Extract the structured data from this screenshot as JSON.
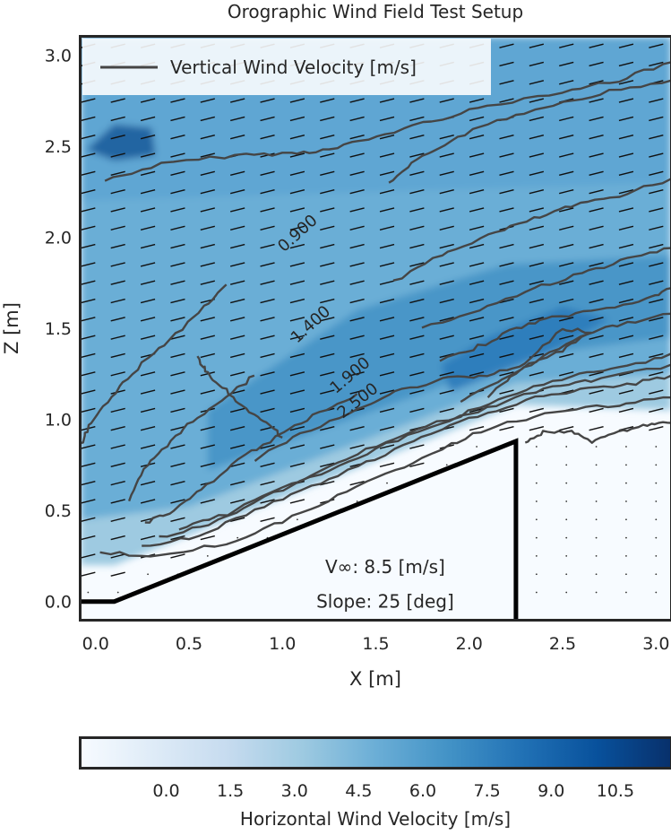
{
  "chart_data": {
    "type": "contour",
    "title": "Orographic Wind Field Test Setup",
    "xlabel": "X [m]",
    "ylabel": "Z [m]",
    "xlim": [
      -0.08,
      3.08
    ],
    "ylim": [
      -0.1,
      3.1
    ],
    "x_ticks": [
      0.0,
      0.5,
      1.0,
      1.5,
      2.0,
      2.5,
      3.0
    ],
    "y_ticks": [
      0.0,
      0.5,
      1.0,
      1.5,
      2.0,
      2.5,
      3.0
    ],
    "tick_format": "0.0",
    "legend": {
      "placement": "top-left",
      "entry": "Vertical Wind Velocity [m/s]",
      "color": "#454545"
    },
    "colorbar": {
      "label": "Horizontal Wind Velocity [m/s]",
      "ticks": [
        0.0,
        1.5,
        3.0,
        4.5,
        6.0,
        7.5,
        9.0,
        10.5
      ],
      "range": [
        -2.0,
        11.8
      ],
      "colors": [
        "#f7fbff",
        "#deebf7",
        "#c6dbef",
        "#9ecae1",
        "#6baed6",
        "#4292c6",
        "#2171b5",
        "#08519c",
        "#08306b"
      ]
    },
    "annotations": [
      {
        "text": "V∞: 8.5 [m/s]",
        "x": 1.55,
        "y": 0.19
      },
      {
        "text": "Slope: 25 [deg]",
        "x": 1.55,
        "y": 0.0
      }
    ],
    "terrain": [
      [
        -0.08,
        0.0
      ],
      [
        0.1,
        0.0
      ],
      [
        2.25,
        0.88
      ],
      [
        2.25,
        -0.1
      ]
    ],
    "contour_labels": [
      {
        "text": "0.900",
        "x": 1.1,
        "y": 2.0,
        "angle": -42
      },
      {
        "text": "1.400",
        "x": 1.17,
        "y": 1.5,
        "angle": -42
      },
      {
        "text": "1.900",
        "x": 1.38,
        "y": 1.22,
        "angle": -40
      },
      {
        "text": "2.500",
        "x": 1.42,
        "y": 1.08,
        "angle": -38
      }
    ],
    "contour_lines": [
      [
        [
          0.05,
          2.31
        ],
        [
          0.35,
          2.4
        ],
        [
          0.75,
          2.45
        ],
        [
          1.05,
          2.46
        ],
        [
          1.25,
          2.48
        ],
        [
          1.5,
          2.55
        ],
        [
          1.8,
          2.64
        ],
        [
          2.1,
          2.72
        ],
        [
          2.5,
          2.8
        ],
        [
          2.8,
          2.86
        ],
        [
          3.08,
          2.96
        ]
      ],
      [
        [
          1.57,
          2.29
        ],
        [
          1.72,
          2.42
        ],
        [
          1.9,
          2.53
        ],
        [
          2.15,
          2.64
        ],
        [
          2.45,
          2.73
        ],
        [
          2.75,
          2.8
        ],
        [
          3.08,
          2.86
        ]
      ],
      [
        [
          1.6,
          1.76
        ],
        [
          1.85,
          1.9
        ],
        [
          2.1,
          2.01
        ],
        [
          2.35,
          2.1
        ],
        [
          2.55,
          2.17
        ],
        [
          2.8,
          2.23
        ],
        [
          3.08,
          2.32
        ]
      ],
      [
        [
          1.75,
          1.5
        ],
        [
          2.05,
          1.6
        ],
        [
          2.35,
          1.72
        ],
        [
          2.6,
          1.8
        ],
        [
          2.85,
          1.88
        ],
        [
          3.08,
          1.94
        ]
      ],
      [
        [
          1.85,
          1.32
        ],
        [
          2.05,
          1.4
        ],
        [
          2.25,
          1.5
        ],
        [
          2.45,
          1.56
        ],
        [
          2.7,
          1.6
        ],
        [
          2.95,
          1.66
        ],
        [
          3.08,
          1.72
        ]
      ],
      [
        [
          1.95,
          1.1
        ],
        [
          2.15,
          1.2
        ],
        [
          2.35,
          1.32
        ],
        [
          2.6,
          1.46
        ],
        [
          2.8,
          1.52
        ],
        [
          3.08,
          1.58
        ]
      ],
      [
        [
          -0.08,
          0.86
        ],
        [
          -0.02,
          0.98
        ],
        [
          0.08,
          1.12
        ],
        [
          0.22,
          1.28
        ],
        [
          0.4,
          1.44
        ],
        [
          0.58,
          1.62
        ],
        [
          0.7,
          1.74
        ]
      ],
      [
        [
          0.18,
          0.55
        ],
        [
          0.26,
          0.72
        ],
        [
          0.38,
          0.86
        ],
        [
          0.52,
          0.99
        ],
        [
          0.7,
          1.13
        ],
        [
          0.85,
          1.24
        ]
      ],
      [
        [
          0.26,
          0.43
        ],
        [
          0.42,
          0.5
        ],
        [
          0.6,
          0.64
        ],
        [
          0.8,
          0.8
        ],
        [
          1.0,
          0.92
        ],
        [
          1.2,
          1.04
        ],
        [
          1.4,
          1.14
        ]
      ],
      [
        [
          0.85,
          0.78
        ],
        [
          1.1,
          0.92
        ],
        [
          1.4,
          1.05
        ],
        [
          1.6,
          1.15
        ],
        [
          1.85,
          1.22
        ],
        [
          2.1,
          1.24
        ],
        [
          2.3,
          1.3
        ],
        [
          2.5,
          1.5
        ],
        [
          2.65,
          1.48
        ],
        [
          2.5,
          1.38
        ],
        [
          2.25,
          1.26
        ],
        [
          2.1,
          1.12
        ]
      ],
      [
        [
          0.02,
          0.27
        ],
        [
          0.35,
          0.25
        ],
        [
          0.7,
          0.32
        ],
        [
          1.0,
          0.44
        ],
        [
          1.3,
          0.58
        ],
        [
          1.6,
          0.72
        ],
        [
          1.9,
          0.86
        ],
        [
          2.15,
          0.97
        ],
        [
          2.45,
          1.04
        ],
        [
          2.8,
          1.08
        ],
        [
          3.08,
          1.12
        ]
      ],
      [
        [
          0.25,
          0.3
        ],
        [
          0.55,
          0.36
        ],
        [
          0.85,
          0.5
        ],
        [
          1.15,
          0.63
        ],
        [
          1.45,
          0.76
        ],
        [
          1.75,
          0.9
        ],
        [
          2.05,
          1.02
        ],
        [
          2.35,
          1.12
        ],
        [
          2.6,
          1.16
        ],
        [
          2.85,
          1.19
        ],
        [
          3.08,
          1.24
        ]
      ],
      [
        [
          0.34,
          0.35
        ],
        [
          0.6,
          0.42
        ],
        [
          0.9,
          0.57
        ],
        [
          1.2,
          0.7
        ],
        [
          1.5,
          0.84
        ],
        [
          1.85,
          0.98
        ],
        [
          2.15,
          1.08
        ],
        [
          2.45,
          1.18
        ],
        [
          2.7,
          1.22
        ],
        [
          3.08,
          1.3
        ]
      ],
      [
        [
          0.44,
          0.4
        ],
        [
          0.7,
          0.48
        ],
        [
          1.0,
          0.62
        ],
        [
          1.3,
          0.76
        ],
        [
          1.6,
          0.9
        ],
        [
          1.95,
          1.02
        ],
        [
          2.25,
          1.14
        ],
        [
          2.55,
          1.24
        ],
        [
          2.8,
          1.28
        ],
        [
          3.08,
          1.36
        ]
      ],
      [
        [
          2.3,
          0.87
        ],
        [
          2.4,
          0.93
        ],
        [
          2.55,
          0.93
        ],
        [
          2.65,
          0.88
        ],
        [
          2.8,
          0.93
        ],
        [
          2.95,
          0.97
        ],
        [
          3.08,
          0.98
        ]
      ],
      [
        [
          0.55,
          1.34
        ],
        [
          0.6,
          1.25
        ],
        [
          0.7,
          1.16
        ],
        [
          0.8,
          1.05
        ],
        [
          0.9,
          0.99
        ],
        [
          1.0,
          0.9
        ]
      ]
    ]
  }
}
